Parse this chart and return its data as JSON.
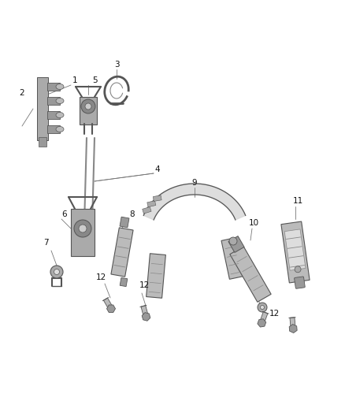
{
  "background_color": "#ffffff",
  "fig_width": 4.38,
  "fig_height": 5.33,
  "dpi": 100,
  "label_fontsize": 7.5,
  "label_color": "#111111",
  "line_color": "#444444",
  "part_dark": "#555555",
  "part_mid": "#888888",
  "part_light": "#cccccc",
  "part_lighter": "#e8e8e8",
  "leader_color": "#777777",
  "leader_lw": 0.6
}
